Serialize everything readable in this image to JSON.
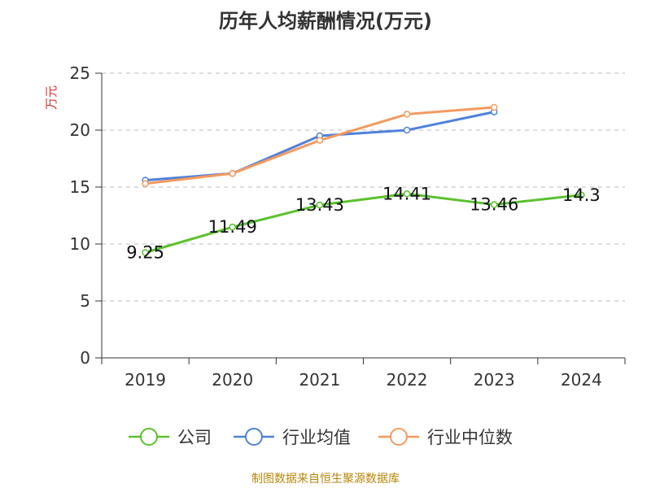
{
  "chart_data": {
    "type": "line",
    "title": "历年人均薪酬情况(万元)",
    "ylabel": "万元",
    "xlabel": "",
    "ylim": [
      0,
      25
    ],
    "yticks": [
      0,
      5,
      10,
      15,
      20,
      25
    ],
    "grid": true,
    "legend_position": "bottom",
    "categories": [
      "2019",
      "2020",
      "2021",
      "2022",
      "2023",
      "2024"
    ],
    "series": [
      {
        "name": "公司",
        "color": "#5ac12e",
        "values": [
          9.25,
          11.49,
          13.43,
          14.41,
          13.46,
          14.3
        ],
        "labels": [
          "9.25",
          "11.49",
          "13.43",
          "14.41",
          "13.46",
          "14.3"
        ]
      },
      {
        "name": "行业均值",
        "color": "#4f81d9",
        "values": [
          15.6,
          16.2,
          19.5,
          20.0,
          21.6,
          null
        ],
        "labels": []
      },
      {
        "name": "行业中位数",
        "color": "#f39a60",
        "values": [
          15.3,
          16.2,
          19.1,
          21.4,
          22.0,
          null
        ],
        "labels": []
      }
    ]
  },
  "footer": {
    "source": "制图数据来自恒生聚源数据库"
  }
}
